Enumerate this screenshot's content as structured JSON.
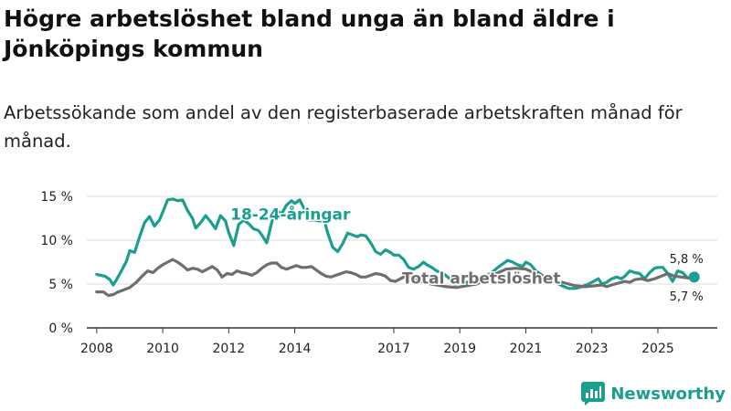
{
  "title": "Högre arbetslöshet bland unga än bland äldre i Jönköpings kommun",
  "subtitle": "Arbetssökande som andel av den registerbaserade arbetskraften månad för månad.",
  "brand": {
    "name": "Newsworthy",
    "icon": "newsworthy-logo-icon"
  },
  "colors": {
    "youth": "#1a9e8f",
    "total": "#6e6e6e",
    "axis": "#333333",
    "grid": "#dddddd",
    "label_halo": "#ffffff"
  },
  "chart_data": {
    "type": "line",
    "title": "Högre arbetslöshet bland unga än bland äldre i Jönköpings kommun",
    "xlabel": "",
    "ylabel": "",
    "xlim": [
      2007.7,
      2026.8
    ],
    "ylim": [
      0,
      15
    ],
    "yticks": [
      0,
      5,
      10,
      15
    ],
    "ytick_labels": [
      "0 %",
      "5 %",
      "10 %",
      "15 %"
    ],
    "xticks": [
      2008,
      2010,
      2012,
      2014,
      2017,
      2019,
      2021,
      2023,
      2025
    ],
    "xtick_labels": [
      "2008",
      "2010",
      "2012",
      "2014",
      "2017",
      "2019",
      "2021",
      "2023",
      "2025"
    ],
    "grid": "horizontal",
    "series": [
      {
        "name": "18-24-åringar",
        "label": "18-24-åringar",
        "end_label": "5,8 %",
        "points": [
          [
            2008.0,
            6.1
          ],
          [
            2008.25,
            5.9
          ],
          [
            2008.4,
            5.5
          ],
          [
            2008.5,
            4.9
          ],
          [
            2008.6,
            5.5
          ],
          [
            2008.75,
            6.5
          ],
          [
            2008.9,
            7.6
          ],
          [
            2009.0,
            8.8
          ],
          [
            2009.15,
            8.6
          ],
          [
            2009.3,
            10.4
          ],
          [
            2009.45,
            12.0
          ],
          [
            2009.6,
            12.7
          ],
          [
            2009.75,
            11.6
          ],
          [
            2009.9,
            12.3
          ],
          [
            2010.0,
            13.2
          ],
          [
            2010.15,
            14.6
          ],
          [
            2010.3,
            14.7
          ],
          [
            2010.45,
            14.5
          ],
          [
            2010.6,
            14.6
          ],
          [
            2010.75,
            13.4
          ],
          [
            2010.9,
            12.5
          ],
          [
            2011.0,
            11.4
          ],
          [
            2011.15,
            12.0
          ],
          [
            2011.3,
            12.8
          ],
          [
            2011.45,
            12.1
          ],
          [
            2011.6,
            11.3
          ],
          [
            2011.75,
            12.8
          ],
          [
            2011.9,
            12.2
          ],
          [
            2012.0,
            10.9
          ],
          [
            2012.15,
            9.4
          ],
          [
            2012.3,
            11.8
          ],
          [
            2012.45,
            12.3
          ],
          [
            2012.6,
            11.9
          ],
          [
            2012.75,
            11.3
          ],
          [
            2012.9,
            11.1
          ],
          [
            2013.0,
            10.6
          ],
          [
            2013.15,
            9.7
          ],
          [
            2013.3,
            12.0
          ],
          [
            2013.45,
            13.4
          ],
          [
            2013.6,
            13.0
          ],
          [
            2013.75,
            14.0
          ],
          [
            2013.9,
            14.5
          ],
          [
            2014.0,
            14.2
          ],
          [
            2014.15,
            14.6
          ],
          [
            2014.3,
            13.5
          ],
          [
            2014.45,
            12.3
          ],
          [
            2014.6,
            12.3
          ],
          [
            2014.75,
            12.2
          ],
          [
            2014.9,
            12.2
          ],
          [
            2015.0,
            10.8
          ],
          [
            2015.15,
            9.2
          ],
          [
            2015.3,
            8.7
          ],
          [
            2015.45,
            9.6
          ],
          [
            2015.6,
            10.8
          ],
          [
            2015.75,
            10.6
          ],
          [
            2015.9,
            10.4
          ],
          [
            2016.0,
            10.6
          ],
          [
            2016.15,
            10.5
          ],
          [
            2016.3,
            9.7
          ],
          [
            2016.45,
            8.7
          ],
          [
            2016.6,
            8.4
          ],
          [
            2016.75,
            8.9
          ],
          [
            2016.9,
            8.6
          ],
          [
            2017.0,
            8.3
          ],
          [
            2017.15,
            8.3
          ],
          [
            2017.3,
            7.8
          ],
          [
            2017.45,
            6.9
          ],
          [
            2017.6,
            6.7
          ],
          [
            2017.75,
            7.0
          ],
          [
            2017.9,
            7.5
          ],
          [
            2018.0,
            7.2
          ],
          [
            2018.15,
            6.9
          ],
          [
            2018.3,
            6.5
          ],
          [
            2018.5,
            6.2
          ],
          [
            2018.7,
            5.6
          ],
          [
            2018.85,
            5.0
          ],
          [
            2019.0,
            5.1
          ],
          [
            2019.2,
            5.2
          ],
          [
            2019.4,
            5.3
          ],
          [
            2019.6,
            5.5
          ],
          [
            2019.8,
            5.9
          ],
          [
            2020.0,
            6.4
          ],
          [
            2020.15,
            6.9
          ],
          [
            2020.3,
            7.3
          ],
          [
            2020.45,
            7.7
          ],
          [
            2020.6,
            7.5
          ],
          [
            2020.75,
            7.2
          ],
          [
            2020.9,
            7.0
          ],
          [
            2021.0,
            7.5
          ],
          [
            2021.15,
            7.2
          ],
          [
            2021.3,
            6.5
          ],
          [
            2021.5,
            6.0
          ],
          [
            2021.7,
            5.6
          ],
          [
            2021.9,
            5.2
          ],
          [
            2022.1,
            4.8
          ],
          [
            2022.3,
            4.5
          ],
          [
            2022.5,
            4.5
          ],
          [
            2022.7,
            4.7
          ],
          [
            2022.9,
            5.0
          ],
          [
            2023.05,
            5.3
          ],
          [
            2023.2,
            5.6
          ],
          [
            2023.3,
            5.0
          ],
          [
            2023.45,
            5.2
          ],
          [
            2023.6,
            5.6
          ],
          [
            2023.75,
            5.8
          ],
          [
            2023.9,
            5.6
          ],
          [
            2024.0,
            5.9
          ],
          [
            2024.15,
            6.5
          ],
          [
            2024.3,
            6.3
          ],
          [
            2024.45,
            6.2
          ],
          [
            2024.6,
            5.6
          ],
          [
            2024.75,
            6.3
          ],
          [
            2024.9,
            6.8
          ],
          [
            2025.0,
            6.9
          ],
          [
            2025.15,
            6.9
          ],
          [
            2025.3,
            6.2
          ],
          [
            2025.45,
            5.3
          ],
          [
            2025.6,
            6.5
          ],
          [
            2025.75,
            6.3
          ],
          [
            2025.9,
            5.7
          ],
          [
            2026.1,
            5.8
          ]
        ]
      },
      {
        "name": "Total arbetslöshet",
        "label": "Total arbetslöshet",
        "end_label": "5,7 %",
        "points": [
          [
            2008.0,
            4.1
          ],
          [
            2008.2,
            4.1
          ],
          [
            2008.35,
            3.7
          ],
          [
            2008.5,
            3.8
          ],
          [
            2008.65,
            4.1
          ],
          [
            2008.8,
            4.3
          ],
          [
            2009.0,
            4.6
          ],
          [
            2009.2,
            5.2
          ],
          [
            2009.4,
            6.0
          ],
          [
            2009.55,
            6.5
          ],
          [
            2009.7,
            6.3
          ],
          [
            2009.85,
            6.8
          ],
          [
            2010.0,
            7.2
          ],
          [
            2010.15,
            7.5
          ],
          [
            2010.3,
            7.8
          ],
          [
            2010.45,
            7.5
          ],
          [
            2010.6,
            7.1
          ],
          [
            2010.75,
            6.6
          ],
          [
            2010.9,
            6.8
          ],
          [
            2011.05,
            6.7
          ],
          [
            2011.2,
            6.4
          ],
          [
            2011.35,
            6.7
          ],
          [
            2011.5,
            7.0
          ],
          [
            2011.65,
            6.6
          ],
          [
            2011.8,
            5.8
          ],
          [
            2011.95,
            6.2
          ],
          [
            2012.1,
            6.1
          ],
          [
            2012.25,
            6.5
          ],
          [
            2012.4,
            6.3
          ],
          [
            2012.55,
            6.2
          ],
          [
            2012.7,
            6.0
          ],
          [
            2012.85,
            6.3
          ],
          [
            2013.0,
            6.8
          ],
          [
            2013.15,
            7.2
          ],
          [
            2013.3,
            7.4
          ],
          [
            2013.45,
            7.4
          ],
          [
            2013.6,
            6.9
          ],
          [
            2013.75,
            6.7
          ],
          [
            2013.9,
            6.9
          ],
          [
            2014.05,
            7.1
          ],
          [
            2014.2,
            6.9
          ],
          [
            2014.35,
            6.9
          ],
          [
            2014.5,
            7.0
          ],
          [
            2014.65,
            6.6
          ],
          [
            2014.8,
            6.2
          ],
          [
            2014.95,
            5.9
          ],
          [
            2015.1,
            5.8
          ],
          [
            2015.25,
            6.0
          ],
          [
            2015.4,
            6.2
          ],
          [
            2015.55,
            6.4
          ],
          [
            2015.7,
            6.3
          ],
          [
            2015.85,
            6.1
          ],
          [
            2016.0,
            5.8
          ],
          [
            2016.15,
            5.8
          ],
          [
            2016.3,
            6.0
          ],
          [
            2016.45,
            6.2
          ],
          [
            2016.6,
            6.1
          ],
          [
            2016.75,
            5.9
          ],
          [
            2016.9,
            5.4
          ],
          [
            2017.05,
            5.3
          ],
          [
            2017.2,
            5.6
          ],
          [
            2017.35,
            5.9
          ],
          [
            2017.5,
            5.8
          ],
          [
            2017.65,
            5.6
          ],
          [
            2017.8,
            5.3
          ],
          [
            2018.0,
            5.1
          ],
          [
            2018.3,
            4.9
          ],
          [
            2018.6,
            4.7
          ],
          [
            2018.9,
            4.6
          ],
          [
            2019.2,
            4.8
          ],
          [
            2019.5,
            5.0
          ],
          [
            2019.8,
            5.5
          ],
          [
            2020.1,
            6.2
          ],
          [
            2020.4,
            6.7
          ],
          [
            2020.7,
            6.8
          ],
          [
            2021.0,
            6.7
          ],
          [
            2021.3,
            6.2
          ],
          [
            2021.6,
            5.8
          ],
          [
            2021.9,
            5.4
          ],
          [
            2022.2,
            5.1
          ],
          [
            2022.5,
            4.8
          ],
          [
            2022.8,
            4.7
          ],
          [
            2023.1,
            4.8
          ],
          [
            2023.3,
            4.9
          ],
          [
            2023.45,
            4.7
          ],
          [
            2023.6,
            4.9
          ],
          [
            2023.8,
            5.1
          ],
          [
            2024.0,
            5.3
          ],
          [
            2024.15,
            5.2
          ],
          [
            2024.3,
            5.5
          ],
          [
            2024.5,
            5.6
          ],
          [
            2024.7,
            5.4
          ],
          [
            2024.9,
            5.6
          ],
          [
            2025.1,
            5.9
          ],
          [
            2025.3,
            6.2
          ],
          [
            2025.5,
            5.9
          ],
          [
            2025.7,
            5.8
          ],
          [
            2025.9,
            5.7
          ],
          [
            2026.1,
            5.7
          ]
        ]
      }
    ]
  }
}
